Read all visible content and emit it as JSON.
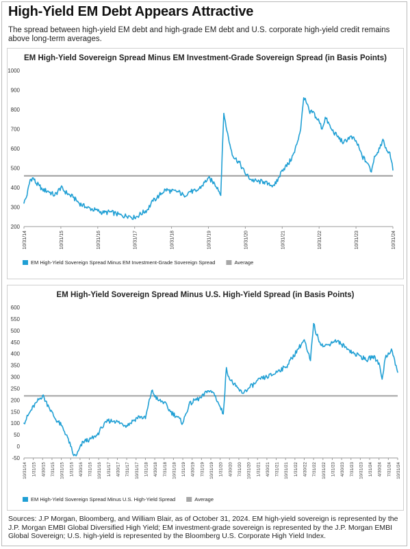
{
  "header": {
    "title": "High-Yield EM Debt Appears Attractive",
    "subtitle": "The spread between high-yield EM debt and high-grade EM debt and U.S. corporate high-yield credit remains above long-term averages."
  },
  "colors": {
    "series": "#1f9fd4",
    "average": "#a6a6a6",
    "axis": "#9a9a9a"
  },
  "chart_data": [
    {
      "type": "line",
      "title": "EM High-Yield Sovereign Spread Minus EM Investment-Grade Sovereign Spread (in Basis Points)",
      "xlabel": "",
      "ylabel": "",
      "ylim": [
        200,
        1000
      ],
      "yticks": [
        200,
        300,
        400,
        500,
        600,
        700,
        800,
        900,
        1000
      ],
      "xlim": [
        "10/31/14",
        "10/31/24"
      ],
      "xtick_labels": [
        "10/31/14",
        "10/31/15",
        "10/31/16",
        "10/31/17",
        "10/31/18",
        "10/31/19",
        "10/31/20",
        "10/31/21",
        "10/31/22",
        "10/31/23",
        "10/31/24"
      ],
      "grid": false,
      "legend_position": "bottom-left",
      "average": 460,
      "series": [
        {
          "name": "EM High-Yield Sovereign Spread Minus EM Investment-Grade Sovereign Spread",
          "x": [
            "10/14",
            "11/14",
            "12/14",
            "1/15",
            "2/15",
            "3/15",
            "4/15",
            "6/15",
            "8/15",
            "10/15",
            "12/15",
            "2/16",
            "4/16",
            "6/16",
            "8/16",
            "10/16",
            "12/16",
            "2/17",
            "4/17",
            "6/17",
            "8/17",
            "10/17",
            "12/17",
            "2/18",
            "4/18",
            "6/18",
            "8/18",
            "10/18",
            "12/18",
            "2/19",
            "4/19",
            "6/19",
            "8/19",
            "10/19",
            "12/19",
            "1/20",
            "2/20",
            "3/20",
            "4/20",
            "5/20",
            "6/20",
            "8/20",
            "10/20",
            "12/20",
            "2/21",
            "4/21",
            "6/21",
            "8/21",
            "10/21",
            "12/21",
            "2/22",
            "4/22",
            "5/22",
            "6/22",
            "7/22",
            "8/22",
            "9/22",
            "10/22",
            "11/22",
            "12/22",
            "2/23",
            "4/23",
            "6/23",
            "8/23",
            "10/23",
            "12/23",
            "2/24",
            "3/24",
            "4/24",
            "5/24",
            "6/24",
            "7/24",
            "8/24",
            "9/24",
            "10/24"
          ],
          "y": [
            320,
            360,
            440,
            450,
            420,
            410,
            390,
            380,
            360,
            400,
            370,
            350,
            320,
            300,
            290,
            280,
            270,
            275,
            265,
            255,
            255,
            245,
            265,
            285,
            330,
            360,
            390,
            380,
            380,
            360,
            380,
            380,
            410,
            450,
            420,
            400,
            360,
            780,
            690,
            620,
            560,
            530,
            470,
            440,
            430,
            430,
            410,
            420,
            490,
            520,
            580,
            700,
            860,
            830,
            780,
            790,
            760,
            740,
            700,
            760,
            700,
            660,
            630,
            660,
            640,
            560,
            520,
            480,
            560,
            580,
            620,
            640,
            590,
            580,
            490
          ]
        }
      ]
    },
    {
      "type": "line",
      "title": "EM High-Yield Sovereign Spread Minus U.S. High-Yield Spread (in Basis Points)",
      "xlabel": "",
      "ylabel": "",
      "ylim": [
        -50,
        600
      ],
      "yticks": [
        -50,
        0,
        50,
        100,
        150,
        200,
        250,
        300,
        350,
        400,
        450,
        500,
        550,
        600
      ],
      "xlim": [
        "10/31/14",
        "10/31/24"
      ],
      "xtick_labels": [
        "10/31/14",
        "1/31/15",
        "4/30/15",
        "7/31/15",
        "10/31/15",
        "1/31/16",
        "4/30/16",
        "7/31/16",
        "10/31/16",
        "1/31/17",
        "4/30/17",
        "7/31/17",
        "10/31/17",
        "1/31/18",
        "4/30/18",
        "7/31/18",
        "10/31/18",
        "1/31/19",
        "4/30/19",
        "7/31/19",
        "10/31/19",
        "1/31/20",
        "4/30/20",
        "7/31/20",
        "10/31/20",
        "1/31/21",
        "4/30/21",
        "7/31/21",
        "10/31/21",
        "1/31/22",
        "4/30/22",
        "7/31/22",
        "10/31/22",
        "1/31/23",
        "4/30/23",
        "7/31/23",
        "10/31/23",
        "1/31/24",
        "4/30/24",
        "7/31/24",
        "10/31/24"
      ],
      "grid": false,
      "legend_position": "bottom-left",
      "average": 218,
      "series": [
        {
          "name": "EM High-Yield Sovereign Spread Minus U.S. High-Yield Spread",
          "x": [
            "10/14",
            "12/14",
            "2/15",
            "4/15",
            "6/15",
            "8/15",
            "10/15",
            "12/15",
            "1/16",
            "2/16",
            "3/16",
            "5/16",
            "7/16",
            "9/16",
            "11/16",
            "1/17",
            "3/17",
            "5/17",
            "7/17",
            "9/17",
            "11/17",
            "1/18",
            "3/18",
            "5/18",
            "7/18",
            "9/18",
            "11/18",
            "1/19",
            "3/19",
            "5/19",
            "7/19",
            "9/19",
            "11/19",
            "1/20",
            "2/20",
            "3/20",
            "4/20",
            "6/20",
            "8/20",
            "10/20",
            "12/20",
            "2/21",
            "4/21",
            "6/21",
            "8/21",
            "10/21",
            "12/21",
            "2/22",
            "4/22",
            "5/22",
            "6/22",
            "7/22",
            "8/22",
            "10/22",
            "12/22",
            "2/23",
            "4/23",
            "6/23",
            "8/23",
            "10/23",
            "12/23",
            "2/24",
            "4/24",
            "5/24",
            "6/24",
            "8/24",
            "10/24"
          ],
          "y": [
            100,
            150,
            190,
            220,
            170,
            120,
            90,
            40,
            0,
            -40,
            -35,
            20,
            30,
            40,
            80,
            110,
            110,
            100,
            90,
            110,
            130,
            120,
            240,
            200,
            190,
            150,
            130,
            100,
            180,
            200,
            210,
            240,
            230,
            170,
            140,
            340,
            290,
            260,
            230,
            250,
            270,
            290,
            300,
            310,
            330,
            340,
            380,
            420,
            460,
            410,
            370,
            530,
            480,
            430,
            440,
            460,
            440,
            420,
            400,
            390,
            370,
            390,
            360,
            290,
            380,
            420,
            320
          ]
        }
      ]
    }
  ],
  "legends": [
    {
      "series_label": "EM High-Yield Sovereign Spread Minus EM Investment-Grade Sovereign Spread",
      "average_label": "Average"
    },
    {
      "series_label": "EM High-Yield Sovereign Spread Minus U.S. High-Yield Spread",
      "average_label": "Average"
    }
  ],
  "footer": {
    "sources": "Sources: J.P Morgan, Bloomberg, and William Blair, as of October 31, 2024. EM high-yield sovereign is represented by the J.P. Morgan EMBI Global Diversified High Yield; EM investment-grade sovereign is represented by the J.P. Morgan EMBI Global Sovereign; U.S. high-yield is represented by the Bloomberg U.S. Corporate High Yield Index."
  }
}
